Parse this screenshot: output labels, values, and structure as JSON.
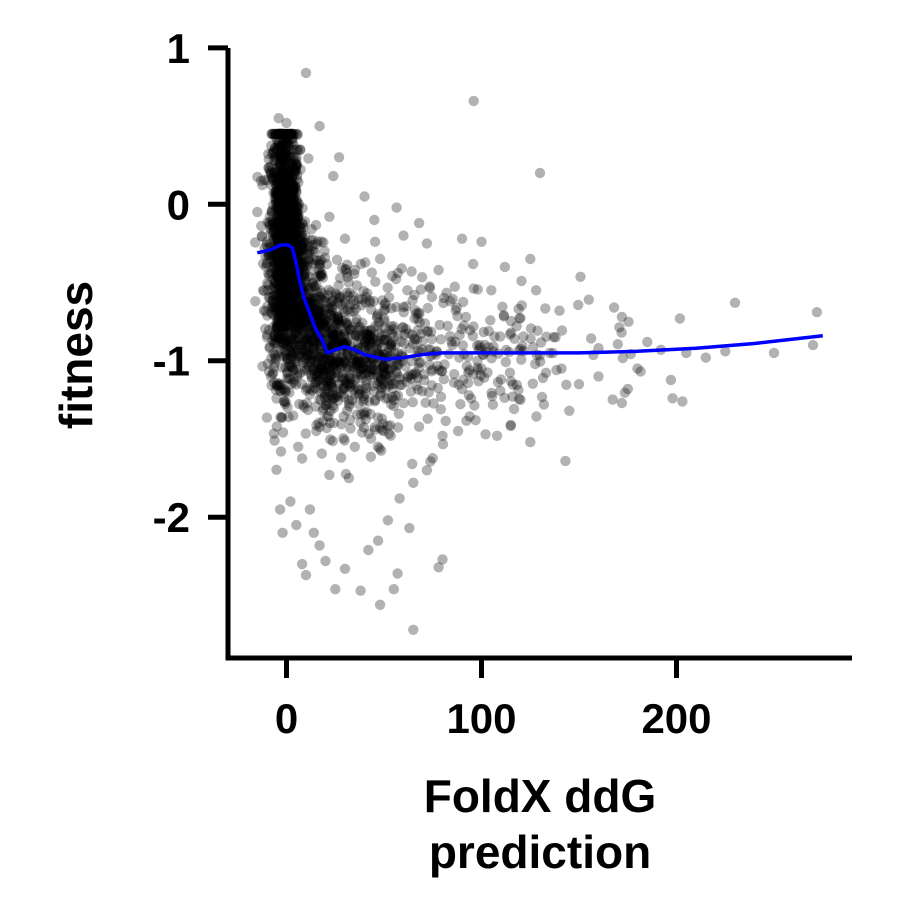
{
  "chart_data": {
    "type": "scatter",
    "xlabel_lines": [
      "FoldX ddG",
      "prediction"
    ],
    "ylabel": "fitness",
    "xlim": [
      -30,
      290
    ],
    "ylim": [
      -2.9,
      1.05
    ],
    "xticks": [
      0,
      100,
      200
    ],
    "xtick_labels": [
      "0",
      "100",
      "200"
    ],
    "yticks": [
      1,
      0,
      -1,
      -2
    ],
    "ytick_labels": [
      "1",
      "0",
      "-1",
      "-2"
    ],
    "grid": false,
    "legend": "none",
    "point_color": "#000000",
    "point_opacity": 0.3,
    "line_color": "#0000ff",
    "trend_line": [
      [
        -15,
        -0.31
      ],
      [
        -8,
        -0.29
      ],
      [
        -3,
        -0.26
      ],
      [
        1,
        -0.26
      ],
      [
        3,
        -0.28
      ],
      [
        5,
        -0.38
      ],
      [
        7,
        -0.5
      ],
      [
        9,
        -0.6
      ],
      [
        12,
        -0.7
      ],
      [
        15,
        -0.8
      ],
      [
        18,
        -0.86
      ],
      [
        21,
        -0.95
      ],
      [
        25,
        -0.93
      ],
      [
        30,
        -0.91
      ],
      [
        35,
        -0.93
      ],
      [
        40,
        -0.96
      ],
      [
        50,
        -0.99
      ],
      [
        60,
        -0.98
      ],
      [
        70,
        -0.96
      ],
      [
        80,
        -0.95
      ],
      [
        100,
        -0.95
      ],
      [
        120,
        -0.95
      ],
      [
        150,
        -0.95
      ],
      [
        180,
        -0.94
      ],
      [
        210,
        -0.92
      ],
      [
        240,
        -0.89
      ],
      [
        275,
        -0.84
      ]
    ],
    "points": [
      [
        10,
        0.84
      ],
      [
        96,
        0.66
      ],
      [
        130,
        0.2
      ],
      [
        17,
        0.5
      ],
      [
        27,
        0.3
      ],
      [
        24,
        0.18
      ],
      [
        40,
        0.05
      ],
      [
        45,
        -0.1
      ],
      [
        60,
        -0.2
      ],
      [
        68,
        -0.12
      ],
      [
        72,
        -0.25
      ],
      [
        90,
        -0.22
      ],
      [
        100,
        -0.24
      ],
      [
        112,
        -0.4
      ],
      [
        125,
        -0.35
      ],
      [
        128,
        -0.55
      ],
      [
        140,
        -0.68
      ],
      [
        155,
        -0.61
      ],
      [
        168,
        -0.66
      ],
      [
        172,
        -0.72
      ],
      [
        185,
        -0.88
      ],
      [
        192,
        -0.93
      ],
      [
        205,
        -0.95
      ],
      [
        225,
        -0.94
      ],
      [
        230,
        -0.63
      ],
      [
        250,
        -0.95
      ],
      [
        272,
        -0.69
      ],
      [
        270,
        -0.9
      ],
      [
        198,
        -1.24
      ],
      [
        203,
        -1.26
      ],
      [
        175,
        -1.18
      ],
      [
        172,
        -1.27
      ],
      [
        160,
        -1.1
      ],
      [
        150,
        -1.15
      ],
      [
        145,
        -1.32
      ],
      [
        143,
        -1.64
      ],
      [
        132,
        -1.28
      ],
      [
        125,
        -1.52
      ],
      [
        115,
        -1.41
      ],
      [
        108,
        -1.48
      ],
      [
        97,
        -1.38
      ],
      [
        88,
        -1.45
      ],
      [
        80,
        -1.48
      ],
      [
        72,
        -1.7
      ],
      [
        65,
        -1.78
      ],
      [
        58,
        -1.88
      ],
      [
        52,
        -2.02
      ],
      [
        47,
        -2.15
      ],
      [
        42,
        -2.21
      ],
      [
        38,
        -2.47
      ],
      [
        48,
        -2.56
      ],
      [
        55,
        -2.46
      ],
      [
        57,
        -2.36
      ],
      [
        65,
        -2.72
      ],
      [
        63,
        -2.07
      ],
      [
        80,
        -2.27
      ],
      [
        78,
        -2.32
      ],
      [
        30,
        -2.33
      ],
      [
        25,
        -2.46
      ],
      [
        20,
        -2.28
      ],
      [
        17,
        -2.18
      ],
      [
        14,
        -2.1
      ],
      [
        12,
        -1.95
      ],
      [
        10,
        -2.37
      ],
      [
        8,
        -2.3
      ],
      [
        5,
        -2.05
      ],
      [
        -2,
        -2.1
      ],
      [
        2,
        -1.9
      ],
      [
        22,
        -1.73
      ],
      [
        28,
        -1.62
      ],
      [
        35,
        -1.55
      ],
      [
        32,
        -1.75
      ],
      [
        6,
        -1.55
      ],
      [
        -5,
        -1.42
      ],
      [
        -8,
        -1.1
      ],
      [
        -10,
        -0.85
      ],
      [
        -12,
        -0.55
      ],
      [
        -15,
        -0.05
      ],
      [
        -13,
        0.15
      ],
      [
        -12,
        -0.38
      ],
      [
        -16,
        -0.62
      ],
      [
        -6,
        0.3
      ],
      [
        -4,
        0.55
      ],
      [
        0,
        0.52
      ],
      [
        3,
        0.4
      ],
      [
        7,
        0.35
      ],
      [
        105,
        -0.55
      ],
      [
        118,
        -0.78
      ],
      [
        92,
        -0.72
      ],
      [
        84,
        -0.62
      ],
      [
        78,
        -0.42
      ],
      [
        62,
        -0.55
      ],
      [
        55,
        -0.78
      ],
      [
        48,
        -0.35
      ],
      [
        35,
        -0.42
      ],
      [
        30,
        -0.22
      ],
      [
        22,
        -0.08
      ],
      [
        135,
        -0.95
      ],
      [
        110,
        -1.12
      ],
      [
        100,
        -1.05
      ],
      [
        90,
        -1.18
      ],
      [
        85,
        -0.9
      ],
      [
        120,
        -1.25
      ],
      [
        138,
        -0.85
      ],
      [
        160,
        -0.92
      ],
      [
        180,
        -1.05
      ],
      [
        215,
        -0.98
      ]
    ]
  }
}
